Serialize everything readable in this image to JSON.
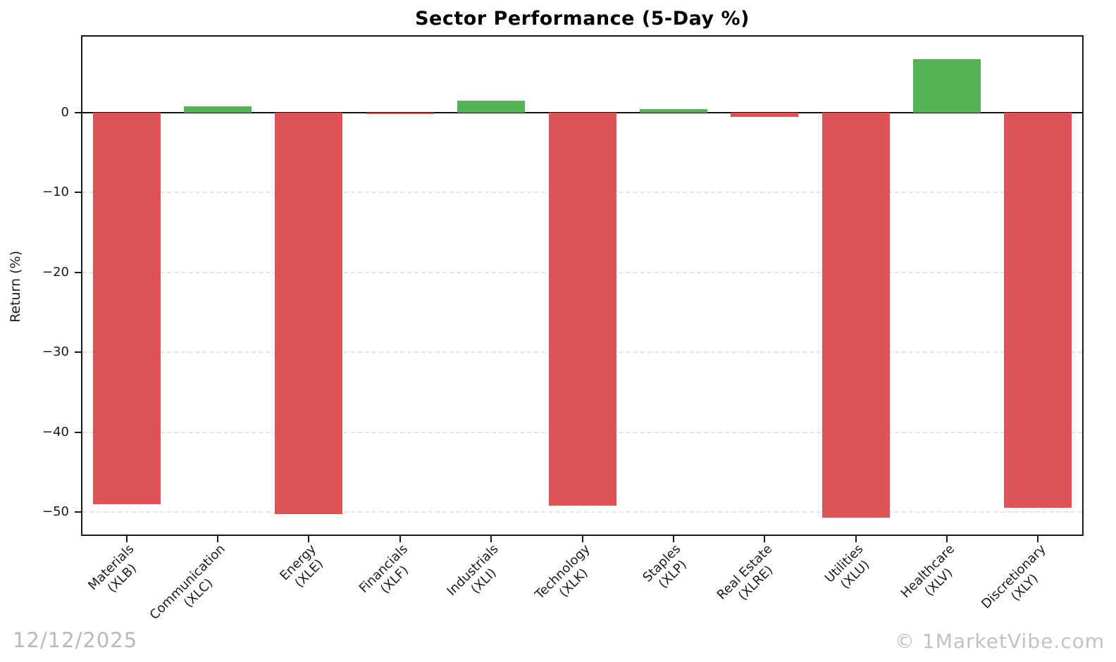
{
  "title": "Sector Performance (5-Day %)",
  "watermark": {
    "date": "12/12/2025",
    "brand": "© 1MarketVibe.com"
  },
  "chart_data": {
    "type": "bar",
    "title": "Sector Performance (5-Day %)",
    "xlabel": "",
    "ylabel": "Return (%)",
    "categories": [
      {
        "name": "Materials",
        "ticker": "(XLB)"
      },
      {
        "name": "Communication",
        "ticker": "(XLC)"
      },
      {
        "name": "Energy",
        "ticker": "(XLE)"
      },
      {
        "name": "Financials",
        "ticker": "(XLF)"
      },
      {
        "name": "Industrials",
        "ticker": "(XLI)"
      },
      {
        "name": "Technology",
        "ticker": "(XLK)"
      },
      {
        "name": "Staples",
        "ticker": "(XLP)"
      },
      {
        "name": "Real Estate",
        "ticker": "(XLRE)"
      },
      {
        "name": "Utilities",
        "ticker": "(XLU)"
      },
      {
        "name": "Healthcare",
        "ticker": "(XLV)"
      },
      {
        "name": "Discretionary",
        "ticker": "(XLY)"
      }
    ],
    "values": [
      -49.0,
      0.8,
      -50.3,
      -0.2,
      1.5,
      -49.2,
      0.4,
      -0.5,
      -50.7,
      6.7,
      -49.5
    ],
    "ylim": [
      -53.0,
      9.7
    ],
    "yticks": [
      0,
      -10,
      -20,
      -30,
      -40,
      -50
    ],
    "ytick_labels": [
      "0",
      "−10",
      "−20",
      "−30",
      "−40",
      "−50"
    ],
    "grid": "horizontal-dashed",
    "legend": "none",
    "colors": {
      "positive": "#53b354",
      "negative": "#db5456"
    }
  }
}
